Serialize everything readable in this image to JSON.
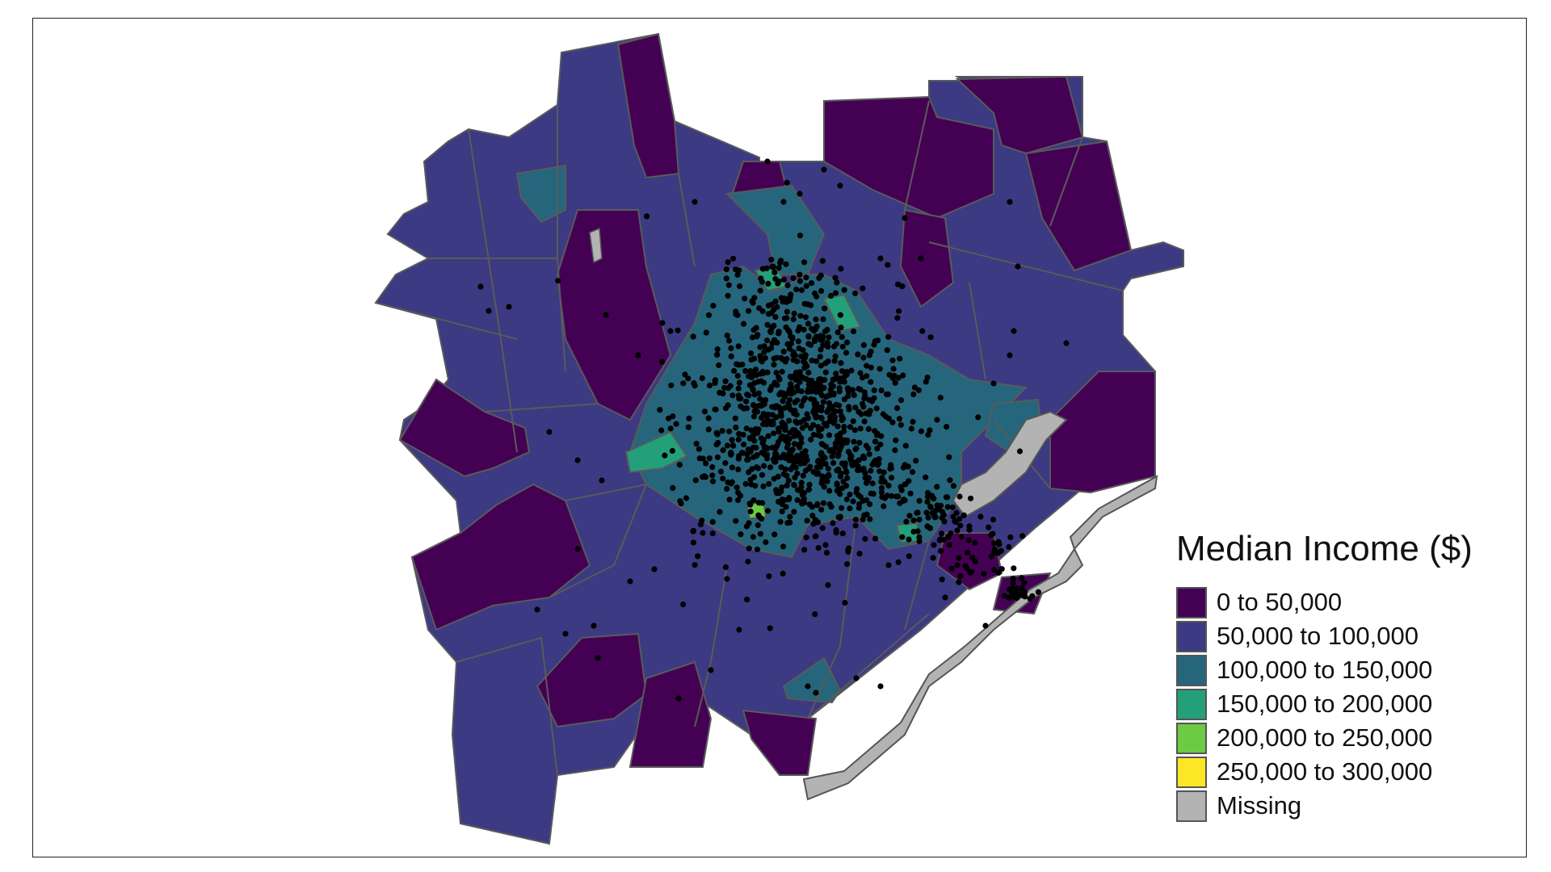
{
  "legend": {
    "title": "Median Income ($)",
    "items": [
      {
        "label": "0 to 50,000",
        "color": "#440154"
      },
      {
        "label": "50,000 to 100,000",
        "color": "#3b3a82"
      },
      {
        "label": "100,000 to 150,000",
        "color": "#25667c"
      },
      {
        "label": "150,000 to 200,000",
        "color": "#23a07a"
      },
      {
        "label": "200,000 to 250,000",
        "color": "#6ccb42"
      },
      {
        "label": "250,000 to 300,000",
        "color": "#fde725"
      },
      {
        "label": "Missing",
        "color": "#b3b3b3"
      }
    ]
  },
  "colors": {
    "boundary": "#5a5a5a",
    "water": "#b3b3b3",
    "point": "#000000"
  },
  "map_description_data": {
    "points_shown": "black dots marking locations, densely clustered near the center"
  }
}
